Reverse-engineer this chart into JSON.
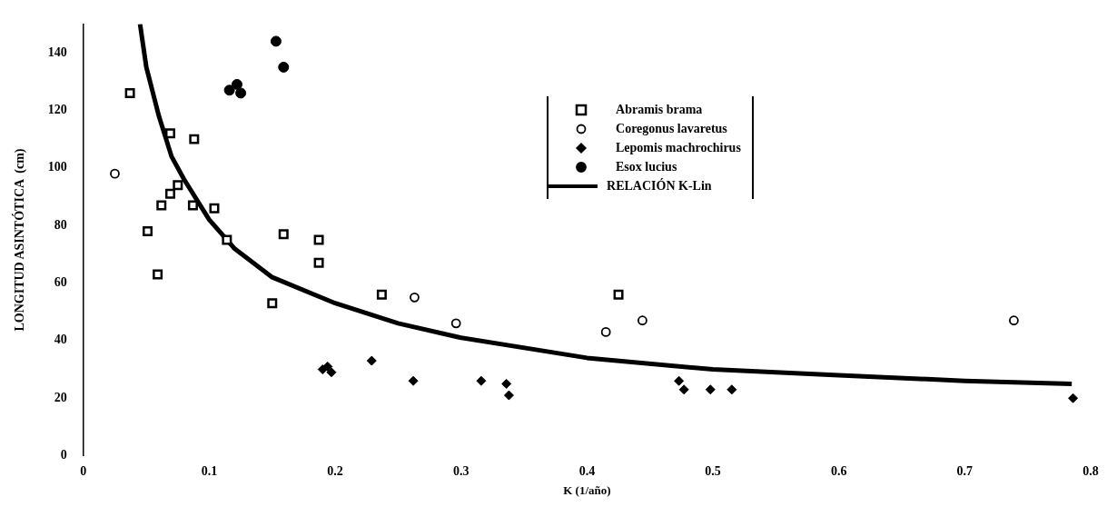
{
  "chart_data": {
    "type": "scatter",
    "xlabel": "K (1/año)",
    "ylabel": "LONGITUD ASINTÓTICA  (cm)",
    "xlim": [
      0,
      0.8
    ],
    "xticks": [
      0,
      0.1,
      0.2,
      0.3,
      0.4,
      0.5,
      0.6,
      0.7,
      0.8
    ],
    "ylim": [
      0,
      150
    ],
    "yticks": [
      0,
      20,
      40,
      60,
      80,
      100,
      120,
      140
    ],
    "grid": false,
    "legend": "top right",
    "series": [
      {
        "name": "Abramis brama",
        "color": "#000000",
        "marker": "square",
        "x": [
          0.037,
          0.069,
          0.088,
          0.075,
          0.069,
          0.062,
          0.087,
          0.104,
          0.051,
          0.114,
          0.159,
          0.059,
          0.187,
          0.187,
          0.15,
          0.237,
          0.425
        ],
        "values": [
          126,
          112,
          110,
          94,
          91,
          87,
          87,
          86,
          78,
          75,
          77,
          63,
          75,
          67,
          53,
          56,
          56
        ]
      },
      {
        "name": "Coregonus lavaretus",
        "color": "#000000",
        "marker": "circle",
        "x": [
          0.025,
          0.263,
          0.296,
          0.415,
          0.444,
          0.739
        ],
        "values": [
          98,
          55,
          46,
          43,
          47,
          47
        ]
      },
      {
        "name": "Lepomis machrochirus",
        "color": "#000000",
        "marker": "diamond",
        "x": [
          0.229,
          0.19,
          0.194,
          0.197,
          0.262,
          0.316,
          0.336,
          0.338,
          0.473,
          0.477,
          0.498,
          0.515,
          0.786
        ],
        "values": [
          33,
          30,
          31,
          29,
          26,
          26,
          25,
          21,
          26,
          23,
          23,
          23,
          20
        ]
      },
      {
        "name": "Esox lucius",
        "color": "#000000",
        "marker": "circle_filled",
        "x": [
          0.153,
          0.159,
          0.116,
          0.122,
          0.125
        ],
        "values": [
          144,
          135,
          127,
          129,
          126
        ]
      },
      {
        "name": "RELACIÓN K-Lin",
        "type": "line",
        "color": "#000000",
        "marker": "none",
        "x": [
          0.045,
          0.05,
          0.06,
          0.07,
          0.08,
          0.1,
          0.12,
          0.15,
          0.2,
          0.25,
          0.3,
          0.4,
          0.5,
          0.6,
          0.7,
          0.785
        ],
        "values": [
          150,
          135,
          118,
          104,
          96,
          82,
          72,
          62,
          53,
          46,
          41,
          34,
          30,
          28,
          26,
          25
        ]
      }
    ]
  }
}
